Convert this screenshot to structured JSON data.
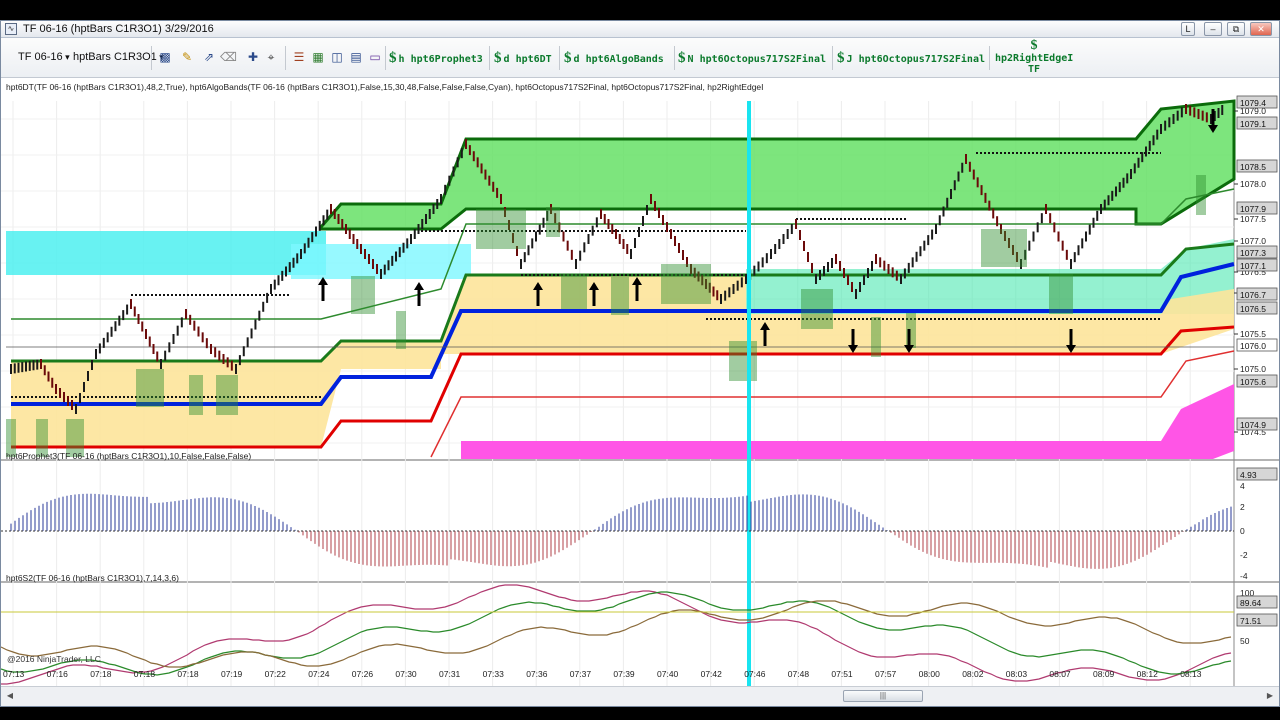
{
  "window": {
    "title": "TF 06-16 (hptBars C1R3O1)  3/29/2016",
    "buttons": [
      "L",
      "–",
      "⧉",
      "✕"
    ]
  },
  "toolbar": {
    "instrument": "TF 06-16",
    "bar_type": "hptBars C1R3O1",
    "strategies": [
      {
        "prefix": "h",
        "label": "hpt6Prophet3"
      },
      {
        "prefix": "d",
        "label": "hpt6DT"
      },
      {
        "prefix": "d",
        "label": "hpt6AlgoBands"
      },
      {
        "prefix": "N",
        "label": "hpt6Octopus717S2Final"
      },
      {
        "prefix": "J",
        "label": "hpt6Octopus717S2Final"
      }
    ],
    "edge_button": {
      "line1": "hp2RightEdgeI",
      "line2": "TF"
    },
    "icons": [
      "bar-style-icon",
      "draw-pencil-icon",
      "pointer-icon",
      "crosshair-icon",
      "properties-icon",
      "strategies-icon",
      "data-box-icon",
      "chart-trader-icon",
      "order-icon"
    ]
  },
  "panels": {
    "price_label": "hpt6DT(TF 06-16 (hptBars C1R3O1),48,2,True), hpt6AlgoBands(TF 06-16 (hptBars C1R3O1),False,15,30,48,False,False,False,Cyan), hpt6Octopus717S2Final, hpt6Octopus717S2Final, hp2RightEdgeI",
    "prophet_label": "hpt6Prophet3(TF 06-16 (hptBars C1R3O1),10,False,False,False)",
    "s2_label": "hpt6S2(TF 06-16 (hptBars C1R3O1),7,14,3,6)",
    "copyright": "@2016 NinjaTrader, LLC"
  },
  "price_axis": {
    "ticks": [
      "1079.0",
      "1078.0",
      "1077.5",
      "1077.0",
      "1076.5",
      "1076.0",
      "1075.5",
      "1075.0",
      "1074.5"
    ],
    "markers": [
      {
        "label": "1079.4",
        "color": "#d6d6d6"
      },
      {
        "label": "1079.1",
        "color": "#d6d6d6"
      },
      {
        "label": "1078.5",
        "color": "#d6d6d6"
      },
      {
        "label": "1077.9",
        "color": "#d6d6d6"
      },
      {
        "label": "1077.3",
        "color": "#d6d6d6"
      },
      {
        "label": "1077.1",
        "color": "#d6d6d6"
      },
      {
        "label": "1076.7",
        "color": "#d6d6d6"
      },
      {
        "label": "1076.5",
        "color": "#d6d6d6"
      },
      {
        "label": "1076.0",
        "color": "#ffffff"
      },
      {
        "label": "1075.6",
        "color": "#d6d6d6"
      },
      {
        "label": "1074.9",
        "color": "#d6d6d6"
      }
    ]
  },
  "prophet_axis": {
    "ticks": [
      "4",
      "2",
      "0",
      "-2",
      "-4"
    ],
    "marker": "4.93"
  },
  "s2_axis": {
    "ticks": [
      "100",
      "50"
    ],
    "markers": [
      "89.64",
      "71.51"
    ]
  },
  "time_axis": [
    "07:13",
    "07:16",
    "07:18",
    "07:18",
    "07:18",
    "07:19",
    "07:22",
    "07:24",
    "07:26",
    "07:30",
    "07:31",
    "07:33",
    "07:36",
    "07:37",
    "07:39",
    "07:40",
    "07:42",
    "07:46",
    "07:48",
    "07:51",
    "07:57",
    "08:00",
    "08:02",
    "08:03",
    "08:07",
    "08:09",
    "08:12",
    "08:13"
  ],
  "colors": {
    "green_band": "#66e066",
    "cyan_band": "#4df0f0",
    "yellow_band": "#fde49a",
    "magenta_band": "#ff55e6",
    "blue_line": "#0022dd",
    "red_line": "#e00000",
    "dark_green_line": "#1a7a1a",
    "cursor_line": "#19e4f0"
  },
  "scrollbar": {
    "thumb_grip": "|||"
  }
}
